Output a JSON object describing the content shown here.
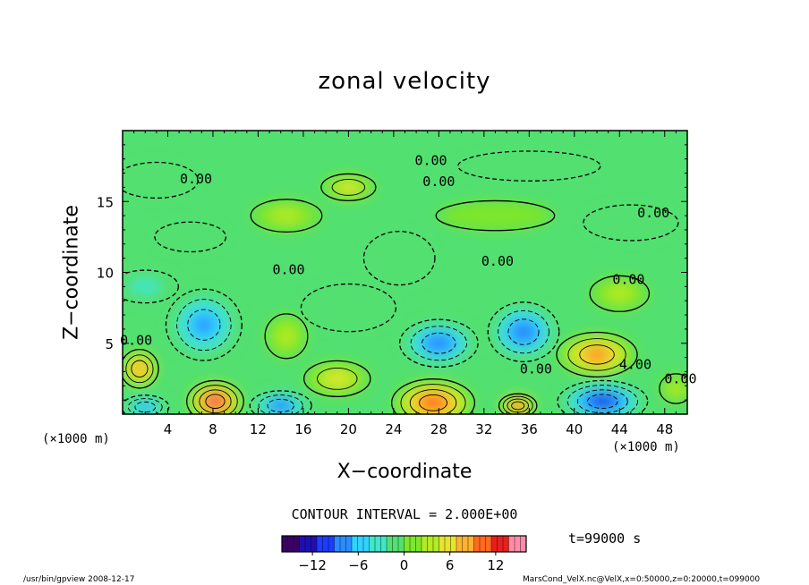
{
  "chart_data": {
    "type": "heatmap",
    "title": "zonal velocity",
    "xlabel": "X−coordinate",
    "ylabel": "Z−coordinate",
    "x_unit": "(×1000 m)",
    "y_unit": "(×1000 m)",
    "xlim": [
      0,
      50
    ],
    "ylim": [
      0,
      20
    ],
    "x_ticks": [
      4,
      8,
      12,
      16,
      20,
      24,
      28,
      32,
      36,
      40,
      44,
      48
    ],
    "y_ticks": [
      5,
      10,
      15
    ],
    "contour_interval": "CONTOUR INTERVAL = 2.000E+00",
    "time": "t=99000 s",
    "colorbar_ticks": [
      -12,
      -6,
      0,
      6,
      12
    ],
    "colorbar_range": [
      -16,
      16
    ],
    "colorbar_colors": [
      "#3a0066",
      "#1f0fb0",
      "#1c3cff",
      "#2a8cff",
      "#30d2ff",
      "#40e6c8",
      "#52e070",
      "#7ce62c",
      "#b4ea26",
      "#e8e42e",
      "#ffb230",
      "#ff6a1e",
      "#e8201c",
      "#ff8ca8"
    ],
    "contour_labels": [
      {
        "text": "0.00",
        "x": 6.5,
        "z": 16.6
      },
      {
        "text": "0.00",
        "x": 27.3,
        "z": 17.9
      },
      {
        "text": "0.00",
        "x": 28.0,
        "z": 16.4
      },
      {
        "text": "0.00",
        "x": 47.0,
        "z": 14.2
      },
      {
        "text": "0.00",
        "x": 14.7,
        "z": 10.2
      },
      {
        "text": "0.00",
        "x": 33.2,
        "z": 10.8
      },
      {
        "text": "0.00",
        "x": 44.8,
        "z": 9.5
      },
      {
        "text": "0.00",
        "x": 1.2,
        "z": 5.2
      },
      {
        "text": "0.00",
        "x": 36.6,
        "z": 3.2
      },
      {
        "text": "4.00",
        "x": 45.4,
        "z": 3.5
      },
      {
        "text": "0.00",
        "x": 49.4,
        "z": 2.5
      }
    ],
    "cells": [
      {
        "x": 3.0,
        "z": 16.5,
        "rx": 3.5,
        "rz": 1.2,
        "v": -1
      },
      {
        "x": 14.5,
        "z": 14.0,
        "rx": 3.0,
        "rz": 1.1,
        "v": 3
      },
      {
        "x": 20.0,
        "z": 16.0,
        "rx": 2.3,
        "rz": 0.9,
        "v": 5
      },
      {
        "x": 36.0,
        "z": 17.5,
        "rx": 6.0,
        "rz": 1.0,
        "v": -2
      },
      {
        "x": 33.0,
        "z": 14.0,
        "rx": 5.0,
        "rz": 1.0,
        "v": 1
      },
      {
        "x": 45.0,
        "z": 13.5,
        "rx": 4.0,
        "rz": 1.2,
        "v": -2
      },
      {
        "x": 44.0,
        "z": 8.5,
        "rx": 2.5,
        "rz": 1.2,
        "v": 4
      },
      {
        "x": 6.0,
        "z": 12.5,
        "rx": 3.0,
        "rz": 1.0,
        "v": -2
      },
      {
        "x": 2.0,
        "z": 9.0,
        "rx": 2.8,
        "rz": 1.1,
        "v": -3
      },
      {
        "x": 7.2,
        "z": 6.3,
        "rx": 3.2,
        "rz": 2.4,
        "v": -8
      },
      {
        "x": 14.5,
        "z": 5.5,
        "rx": 1.8,
        "rz": 1.5,
        "v": 4
      },
      {
        "x": 20.0,
        "z": 7.5,
        "rx": 4.0,
        "rz": 1.6,
        "v": -1
      },
      {
        "x": 28.0,
        "z": 5.0,
        "rx": 3.3,
        "rz": 1.6,
        "v": -9
      },
      {
        "x": 35.5,
        "z": 5.8,
        "rx": 3.0,
        "rz": 2.0,
        "v": -9
      },
      {
        "x": 42.0,
        "z": 4.2,
        "rx": 3.4,
        "rz": 1.5,
        "v": 10
      },
      {
        "x": 1.5,
        "z": 3.2,
        "rx": 1.6,
        "rz": 1.3,
        "v": 9
      },
      {
        "x": 19.0,
        "z": 2.5,
        "rx": 2.8,
        "rz": 1.2,
        "v": 5
      },
      {
        "x": 8.2,
        "z": 0.9,
        "rx": 2.4,
        "rz": 1.4,
        "v": 14
      },
      {
        "x": 14.0,
        "z": 0.6,
        "rx": 2.6,
        "rz": 1.0,
        "v": -10
      },
      {
        "x": 2.0,
        "z": 0.5,
        "rx": 2.0,
        "rz": 0.8,
        "v": -8
      },
      {
        "x": 27.5,
        "z": 0.8,
        "rx": 3.5,
        "rz": 1.6,
        "v": 11
      },
      {
        "x": 35.0,
        "z": 0.6,
        "rx": 1.6,
        "rz": 0.8,
        "v": 12
      },
      {
        "x": 42.5,
        "z": 0.9,
        "rx": 3.8,
        "rz": 1.4,
        "v": -12
      },
      {
        "x": 49.0,
        "z": 1.8,
        "rx": 1.4,
        "rz": 1.0,
        "v": 3
      },
      {
        "x": 24.5,
        "z": 11.0,
        "rx": 3.0,
        "rz": 1.8,
        "v": -2
      }
    ]
  },
  "footer": {
    "program": "/usr/bin/gpview  2008-12-17",
    "source": "MarsCond_VelX.nc@VelX,x=0:50000,z=0:20000,t=099000"
  }
}
